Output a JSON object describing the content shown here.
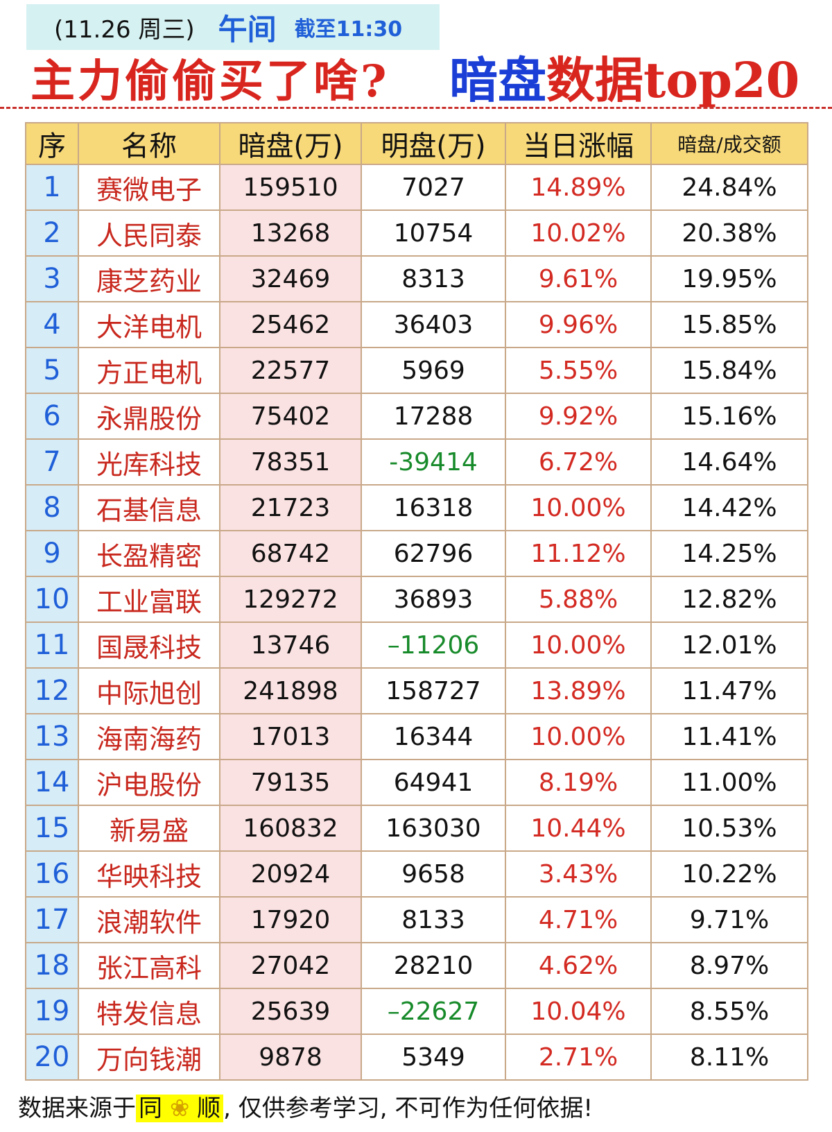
{
  "header": {
    "date": "(11.26 周三)",
    "period": "午间",
    "cutoff": "截至11:30",
    "title_left": "主力偷偷买了啥?",
    "title_right_part1": "暗盘",
    "title_right_part2": "数据top20"
  },
  "table": {
    "headers": [
      "序",
      "名称",
      "暗盘(万)",
      "明盘(万)",
      "当日涨幅",
      "暗盘/成交额"
    ],
    "rows": [
      [
        "1",
        "赛微电子",
        "159510",
        "7027",
        "14.89%",
        "24.84%"
      ],
      [
        "2",
        "人民同泰",
        "13268",
        "10754",
        "10.02%",
        "20.38%"
      ],
      [
        "3",
        "康芝药业",
        "32469",
        "8313",
        "9.61%",
        "19.95%"
      ],
      [
        "4",
        "大洋电机",
        "25462",
        "36403",
        "9.96%",
        "15.85%"
      ],
      [
        "5",
        "方正电机",
        "22577",
        "5969",
        "5.55%",
        "15.84%"
      ],
      [
        "6",
        "永鼎股份",
        "75402",
        "17288",
        "9.92%",
        "15.16%"
      ],
      [
        "7",
        "光库科技",
        "78351",
        "-39414",
        "6.72%",
        "14.64%"
      ],
      [
        "8",
        "石基信息",
        "21723",
        "16318",
        "10.00%",
        "14.42%"
      ],
      [
        "9",
        "长盈精密",
        "68742",
        "62796",
        "11.12%",
        "14.25%"
      ],
      [
        "10",
        "工业富联",
        "129272",
        "36893",
        "5.88%",
        "12.82%"
      ],
      [
        "11",
        "国晟科技",
        "13746",
        "–11206",
        "10.00%",
        "12.01%"
      ],
      [
        "12",
        "中际旭创",
        "241898",
        "158727",
        "13.89%",
        "11.47%"
      ],
      [
        "13",
        "海南海药",
        "17013",
        "16344",
        "10.00%",
        "11.41%"
      ],
      [
        "14",
        "沪电股份",
        "79135",
        "64941",
        "8.19%",
        "11.00%"
      ],
      [
        "15",
        "新易盛",
        "160832",
        "163030",
        "10.44%",
        "10.53%"
      ],
      [
        "16",
        "华映科技",
        "20924",
        "9658",
        "3.43%",
        "10.22%"
      ],
      [
        "17",
        "浪潮软件",
        "17920",
        "8133",
        "4.71%",
        "9.71%"
      ],
      [
        "18",
        "张江高科",
        "27042",
        "28210",
        "4.62%",
        "8.97%"
      ],
      [
        "19",
        "特发信息",
        "25639",
        "–22627",
        "10.04%",
        "8.55%"
      ],
      [
        "20",
        "万向钱潮",
        "9878",
        "5349",
        "2.71%",
        "8.11%"
      ]
    ]
  },
  "footer": {
    "prefix": "数据来源于",
    "brand_1": "同",
    "brand_icon": "flower-icon",
    "brand_glyph": "❀",
    "brand_2": "顺",
    "suffix": ", 仅供参考学习, 不可作为任何依据!"
  },
  "colors": {
    "header_bg": "#f8d97a",
    "index_bg": "#d6ecf7",
    "dark_col_bg": "#fbe2e2",
    "name_red": "#c8281e",
    "change_red": "#d32a22",
    "negative_green": "#178a2a",
    "title_blue": "#1b3fd6",
    "date_box_bg": "#d6f1f1"
  }
}
